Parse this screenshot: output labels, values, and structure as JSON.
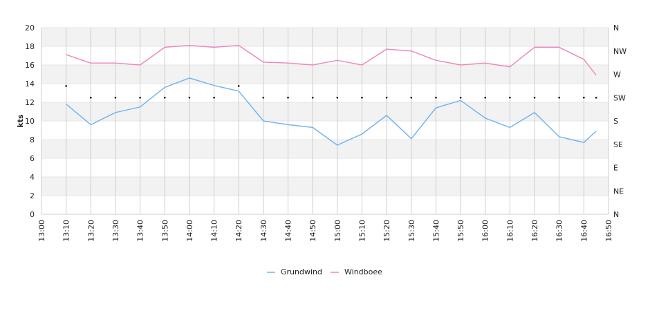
{
  "chart_data": {
    "type": "line",
    "title": "",
    "xlabel": "",
    "ylabel": "kts",
    "ylim": [
      0,
      20
    ],
    "y_ticks": [
      0,
      2,
      4,
      6,
      8,
      10,
      12,
      14,
      16,
      18,
      20
    ],
    "x_range": [
      "13:00",
      "16:50"
    ],
    "x_ticks": [
      "13:00",
      "13:10",
      "13:20",
      "13:30",
      "13:40",
      "13:50",
      "14:00",
      "14:10",
      "14:20",
      "14:30",
      "14:40",
      "14:50",
      "15:00",
      "15:10",
      "15:20",
      "15:30",
      "15:40",
      "15:50",
      "16:00",
      "16:10",
      "16:20",
      "16:30",
      "16:40",
      "16:50"
    ],
    "right_axis": {
      "range": [
        0,
        360
      ],
      "ticks": [
        {
          "value": 0,
          "label": "N"
        },
        {
          "value": 45,
          "label": "NE"
        },
        {
          "value": 90,
          "label": "E"
        },
        {
          "value": 135,
          "label": "SE"
        },
        {
          "value": 180,
          "label": "S"
        },
        {
          "value": 225,
          "label": "SW"
        },
        {
          "value": 270,
          "label": "W"
        },
        {
          "value": 315,
          "label": "NW"
        },
        {
          "value": 360,
          "label": "N"
        }
      ]
    },
    "grid": true,
    "legend_position": "bottom-center",
    "series": [
      {
        "name": "Grundwind",
        "color": "#74b4f0",
        "x": [
          "13:10",
          "13:20",
          "13:30",
          "13:40",
          "13:50",
          "14:00",
          "14:10",
          "14:20",
          "14:30",
          "14:40",
          "14:50",
          "15:00",
          "15:10",
          "15:20",
          "15:30",
          "15:40",
          "15:50",
          "16:00",
          "16:10",
          "16:20",
          "16:30",
          "16:40",
          "16:45"
        ],
        "values": [
          11.8,
          9.6,
          10.9,
          11.5,
          13.6,
          14.6,
          13.8,
          13.2,
          10.0,
          9.6,
          9.3,
          7.4,
          8.6,
          10.6,
          8.1,
          11.4,
          12.2,
          10.3,
          9.3,
          10.9,
          8.3,
          7.7,
          8.9
        ]
      },
      {
        "name": "Windboee",
        "color": "#ee88bb",
        "x": [
          "13:10",
          "13:20",
          "13:30",
          "13:40",
          "13:50",
          "14:00",
          "14:10",
          "14:20",
          "14:30",
          "14:40",
          "14:50",
          "15:00",
          "15:10",
          "15:20",
          "15:30",
          "15:40",
          "15:50",
          "16:00",
          "16:10",
          "16:20",
          "16:30",
          "16:40",
          "16:45"
        ],
        "values": [
          17.1,
          16.2,
          16.2,
          16.0,
          17.9,
          18.1,
          17.9,
          18.1,
          16.3,
          16.2,
          16.0,
          16.5,
          16.0,
          17.7,
          17.5,
          16.5,
          16.0,
          16.2,
          15.8,
          17.9,
          17.9,
          16.6,
          14.9
        ]
      },
      {
        "name": "",
        "type": "scatter",
        "axis": "right",
        "color": "#000000",
        "x": [
          "13:10",
          "13:20",
          "13:30",
          "13:40",
          "13:50",
          "14:00",
          "14:10",
          "14:20",
          "14:30",
          "14:40",
          "14:50",
          "15:00",
          "15:10",
          "15:20",
          "15:30",
          "15:40",
          "15:50",
          "16:00",
          "16:10",
          "16:20",
          "16:30",
          "16:40",
          "16:45"
        ],
        "values": [
          247.5,
          225,
          225,
          225,
          225,
          225,
          225,
          247.5,
          225,
          225,
          225,
          225,
          225,
          225,
          225,
          225,
          225,
          225,
          225,
          225,
          225,
          225,
          225
        ]
      }
    ]
  }
}
